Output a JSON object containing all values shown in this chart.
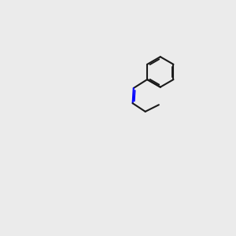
{
  "bg_color": "#ebebeb",
  "bond_color": "#1a1a1a",
  "n_color": "#0000ff",
  "s_color": "#cccc00",
  "o_color": "#ff0000",
  "cl_color": "#00aa00",
  "h_color": "#008888",
  "font_size": 7.5,
  "lw": 1.5
}
